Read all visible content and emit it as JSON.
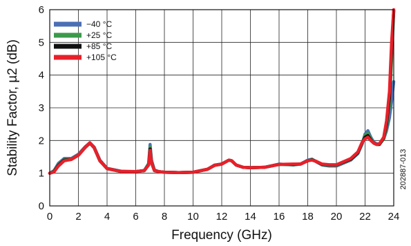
{
  "chart_data": {
    "type": "line",
    "title": "",
    "xlabel": "Frequency (GHz)",
    "ylabel": "Stability Factor, µ2 (dB)",
    "xlim": [
      0,
      24
    ],
    "ylim": [
      0,
      6
    ],
    "xticks": [
      0,
      2,
      4,
      6,
      8,
      10,
      12,
      14,
      16,
      18,
      20,
      22,
      24
    ],
    "yticks": [
      0,
      1,
      2,
      3,
      4,
      5,
      6
    ],
    "grid": true,
    "legend_position": "top-left",
    "figure_id": "202887-013",
    "series": [
      {
        "name": "−40 °C",
        "color": "#4a6fb5",
        "x": [
          0,
          0.3,
          0.6,
          1.0,
          1.5,
          2.0,
          2.5,
          2.8,
          3.1,
          3.5,
          4.0,
          5.0,
          6.0,
          6.6,
          6.9,
          7.0,
          7.1,
          7.3,
          7.6,
          8.0,
          9.0,
          10.0,
          11.0,
          11.5,
          12.0,
          12.5,
          12.7,
          13.0,
          13.5,
          14.0,
          15.0,
          16.0,
          17.0,
          17.5,
          18.0,
          18.3,
          18.6,
          19.0,
          19.5,
          20.0,
          21.0,
          21.5,
          21.8,
          22.0,
          22.2,
          22.4,
          22.6,
          22.8,
          23.0,
          23.3,
          23.5,
          23.7,
          23.85,
          24.0
        ],
        "y": [
          1.0,
          1.08,
          1.3,
          1.45,
          1.45,
          1.58,
          1.82,
          1.93,
          1.8,
          1.4,
          1.15,
          1.06,
          1.05,
          1.08,
          1.3,
          1.88,
          1.4,
          1.1,
          1.05,
          1.03,
          1.02,
          1.03,
          1.12,
          1.25,
          1.28,
          1.4,
          1.38,
          1.25,
          1.18,
          1.17,
          1.18,
          1.28,
          1.25,
          1.28,
          1.4,
          1.43,
          1.35,
          1.25,
          1.22,
          1.22,
          1.4,
          1.6,
          1.9,
          2.2,
          2.3,
          2.1,
          1.95,
          1.9,
          1.9,
          2.05,
          2.3,
          2.7,
          3.2,
          3.8
        ]
      },
      {
        "name": "+25 °C",
        "color": "#3a9a4a",
        "x": [
          0,
          0.3,
          0.6,
          1.0,
          1.5,
          2.0,
          2.5,
          2.8,
          3.1,
          3.5,
          4.0,
          5.0,
          6.0,
          6.6,
          6.9,
          7.0,
          7.1,
          7.3,
          7.6,
          8.0,
          9.0,
          10.0,
          11.0,
          11.5,
          12.0,
          12.5,
          12.7,
          13.0,
          13.5,
          14.0,
          15.0,
          16.0,
          17.0,
          17.5,
          18.0,
          18.3,
          18.6,
          19.0,
          19.5,
          20.0,
          21.0,
          21.5,
          21.8,
          22.0,
          22.2,
          22.4,
          22.6,
          22.8,
          23.0,
          23.3,
          23.5,
          23.7,
          23.85,
          24.0
        ],
        "y": [
          1.0,
          1.06,
          1.26,
          1.42,
          1.43,
          1.56,
          1.8,
          1.92,
          1.78,
          1.38,
          1.14,
          1.05,
          1.05,
          1.08,
          1.28,
          1.8,
          1.36,
          1.09,
          1.05,
          1.03,
          1.02,
          1.03,
          1.12,
          1.24,
          1.28,
          1.4,
          1.38,
          1.25,
          1.18,
          1.17,
          1.18,
          1.27,
          1.26,
          1.28,
          1.38,
          1.42,
          1.36,
          1.26,
          1.24,
          1.24,
          1.42,
          1.62,
          1.92,
          2.15,
          2.22,
          2.05,
          1.93,
          1.88,
          1.88,
          2.05,
          2.4,
          3.1,
          4.5,
          5.95
        ]
      },
      {
        "name": "+85 °C",
        "color": "#111111",
        "x": [
          0,
          0.3,
          0.6,
          1.0,
          1.5,
          2.0,
          2.5,
          2.8,
          3.1,
          3.5,
          4.0,
          5.0,
          6.0,
          6.6,
          6.9,
          7.0,
          7.1,
          7.3,
          7.6,
          8.0,
          9.0,
          10.0,
          11.0,
          11.5,
          12.0,
          12.5,
          12.7,
          13.0,
          13.5,
          14.0,
          15.0,
          16.0,
          17.0,
          17.5,
          18.0,
          18.3,
          18.6,
          19.0,
          19.5,
          20.0,
          21.0,
          21.5,
          21.8,
          22.0,
          22.2,
          22.4,
          22.6,
          22.8,
          23.0,
          23.3,
          23.5,
          23.7,
          23.85,
          24.0
        ],
        "y": [
          1.0,
          1.05,
          1.24,
          1.4,
          1.42,
          1.55,
          1.8,
          1.92,
          1.78,
          1.38,
          1.14,
          1.05,
          1.05,
          1.08,
          1.26,
          1.74,
          1.33,
          1.08,
          1.05,
          1.03,
          1.02,
          1.03,
          1.12,
          1.24,
          1.28,
          1.4,
          1.38,
          1.25,
          1.18,
          1.17,
          1.18,
          1.27,
          1.27,
          1.28,
          1.38,
          1.41,
          1.36,
          1.27,
          1.25,
          1.25,
          1.43,
          1.63,
          1.94,
          2.1,
          2.15,
          2.02,
          1.92,
          1.88,
          1.88,
          2.08,
          2.5,
          3.3,
          4.8,
          5.98
        ]
      },
      {
        "name": "+105 °C",
        "color": "#e8202a",
        "x": [
          0,
          0.3,
          0.6,
          1.0,
          1.5,
          2.0,
          2.5,
          2.8,
          3.1,
          3.5,
          4.0,
          5.0,
          6.0,
          6.6,
          6.9,
          7.0,
          7.1,
          7.3,
          7.6,
          8.0,
          9.0,
          10.0,
          11.0,
          11.5,
          12.0,
          12.5,
          12.7,
          13.0,
          13.5,
          14.0,
          15.0,
          16.0,
          17.0,
          17.5,
          18.0,
          18.3,
          18.6,
          19.0,
          19.5,
          20.0,
          21.0,
          21.5,
          21.8,
          22.0,
          22.2,
          22.4,
          22.6,
          22.8,
          23.0,
          23.3,
          23.5,
          23.7,
          23.85,
          24.0
        ],
        "y": [
          1.0,
          1.04,
          1.22,
          1.38,
          1.42,
          1.55,
          1.8,
          1.93,
          1.78,
          1.38,
          1.14,
          1.05,
          1.05,
          1.08,
          1.25,
          1.7,
          1.32,
          1.08,
          1.05,
          1.03,
          1.02,
          1.03,
          1.12,
          1.24,
          1.28,
          1.4,
          1.38,
          1.25,
          1.18,
          1.17,
          1.18,
          1.27,
          1.28,
          1.28,
          1.38,
          1.4,
          1.36,
          1.28,
          1.26,
          1.26,
          1.45,
          1.65,
          1.95,
          2.05,
          2.1,
          2.0,
          1.92,
          1.88,
          1.9,
          2.1,
          2.6,
          3.5,
          5.0,
          6.0
        ]
      }
    ]
  }
}
